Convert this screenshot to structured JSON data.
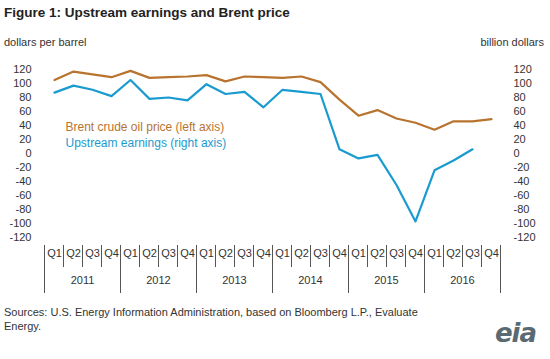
{
  "chart_data": {
    "type": "line",
    "title": "Figure 1: Upstream earnings and Brent price",
    "y_label": "dollars per barrel",
    "y2_label": "billion dollars",
    "categories": [
      "Q1",
      "Q2",
      "Q3",
      "Q4",
      "Q1",
      "Q2",
      "Q3",
      "Q4",
      "Q1",
      "Q2",
      "Q3",
      "Q4",
      "Q1",
      "Q2",
      "Q3",
      "Q4",
      "Q1",
      "Q2",
      "Q3",
      "Q4",
      "Q1",
      "Q2",
      "Q3",
      "Q4"
    ],
    "years": [
      "2011",
      "2012",
      "2013",
      "2014",
      "2015",
      "2016"
    ],
    "series": [
      {
        "name": "Brent crude oil price (left axis)",
        "color": "#b8732f",
        "values": [
          105,
          117,
          113,
          109,
          118,
          108,
          109,
          110,
          112,
          103,
          110,
          109,
          108,
          110,
          102,
          77,
          54,
          62,
          50,
          44,
          34,
          46,
          46,
          49
        ]
      },
      {
        "name": "Upstream earnings (right axis)",
        "color": "#1a9bd0",
        "axis": "y2",
        "values": [
          87,
          97,
          91,
          82,
          105,
          78,
          80,
          76,
          99,
          85,
          88,
          66,
          91,
          88,
          85,
          6,
          -7,
          -2,
          -45,
          -97,
          -24,
          -10,
          6,
          null
        ]
      }
    ],
    "ylim": [
      -120,
      120
    ],
    "yticks": [
      -120,
      -100,
      -80,
      -60,
      -40,
      -20,
      0,
      20,
      40,
      60,
      80,
      100,
      120
    ],
    "y2lim": [
      -120,
      120
    ],
    "y2ticks": [
      -120,
      -100,
      -80,
      -60,
      -40,
      -20,
      0,
      20,
      40,
      60,
      80,
      100,
      120
    ],
    "grid": false,
    "source": "Sources: U.S. Energy Information Administration, based on Bloomberg L.P., Evaluate Energy.",
    "logo": "eia"
  }
}
